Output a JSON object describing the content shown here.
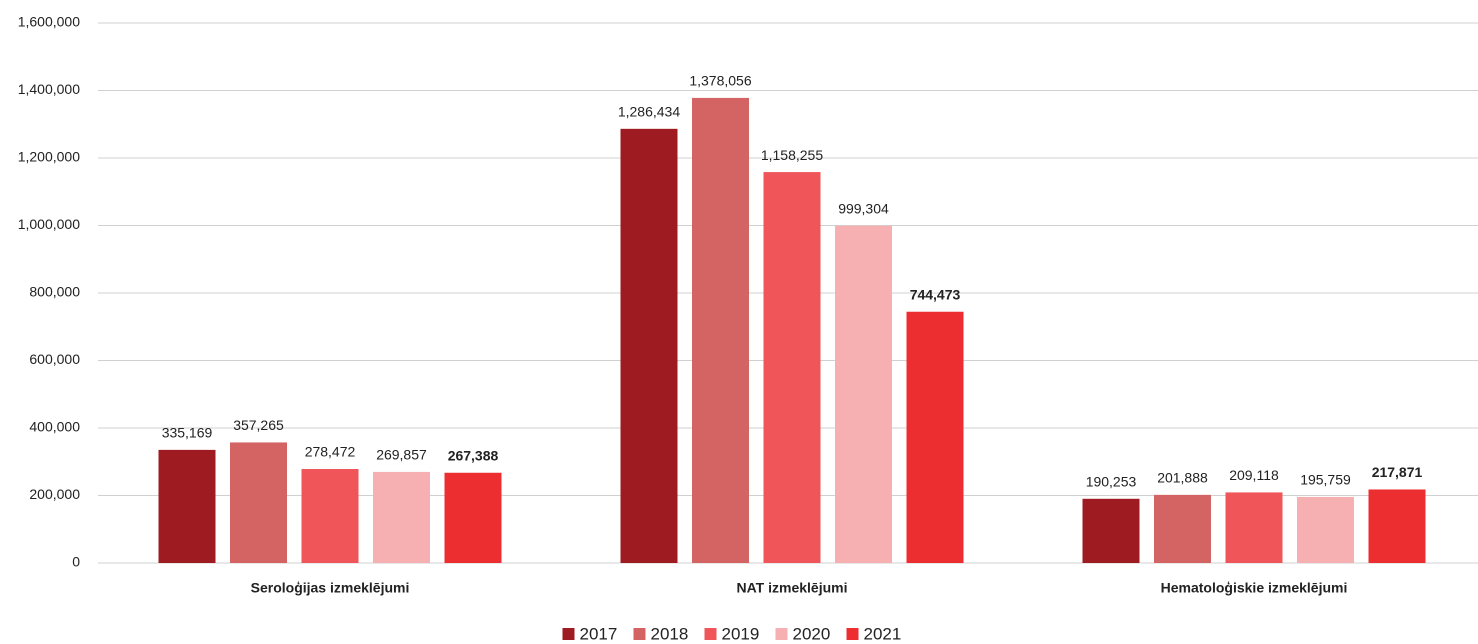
{
  "chart_data": {
    "type": "bar",
    "categories": [
      "Seroloģijas izmeklējumi",
      "NAT izmeklējumi",
      "Hematoloģiskie izmeklējumi"
    ],
    "series": [
      {
        "name": "2017",
        "color": "#9e1b22",
        "values": [
          335169,
          1286434,
          190253
        ],
        "value_labels": [
          "335,169",
          "1,286,434",
          "190,253"
        ]
      },
      {
        "name": "2018",
        "color": "#d46464",
        "values": [
          357265,
          1378056,
          201888
        ],
        "value_labels": [
          "357,265",
          "1,378,056",
          "201,888"
        ]
      },
      {
        "name": "2019",
        "color": "#ef5559",
        "values": [
          278472,
          1158255,
          209118
        ],
        "value_labels": [
          "278,472",
          "1,158,255",
          "209,118"
        ]
      },
      {
        "name": "2020",
        "color": "#f6b0b2",
        "values": [
          269857,
          999304,
          195759
        ],
        "value_labels": [
          "269,857",
          "999,304",
          "195,759"
        ]
      },
      {
        "name": "2021",
        "color": "#ed2e31",
        "values": [
          267388,
          744473,
          217871
        ],
        "value_labels": [
          "267,388",
          "744,473",
          "217,871"
        ]
      }
    ],
    "ylim": [
      0,
      1600000
    ],
    "yticks": [
      0,
      {
        "value": 200000,
        "label": "200,000"
      },
      {
        "value": 400000,
        "label": "400,000"
      },
      {
        "value": 600000,
        "label": "600,000"
      },
      {
        "value": 800000,
        "label": "800,000"
      },
      {
        "value": 1000000,
        "label": "1,000,000"
      },
      {
        "value": 1200000,
        "label": "1,200,000"
      },
      {
        "value": 1400000,
        "label": "1,400,000"
      },
      {
        "value": 1600000,
        "label": "1,600,000"
      }
    ],
    "grid": true,
    "legend": "bottom"
  }
}
